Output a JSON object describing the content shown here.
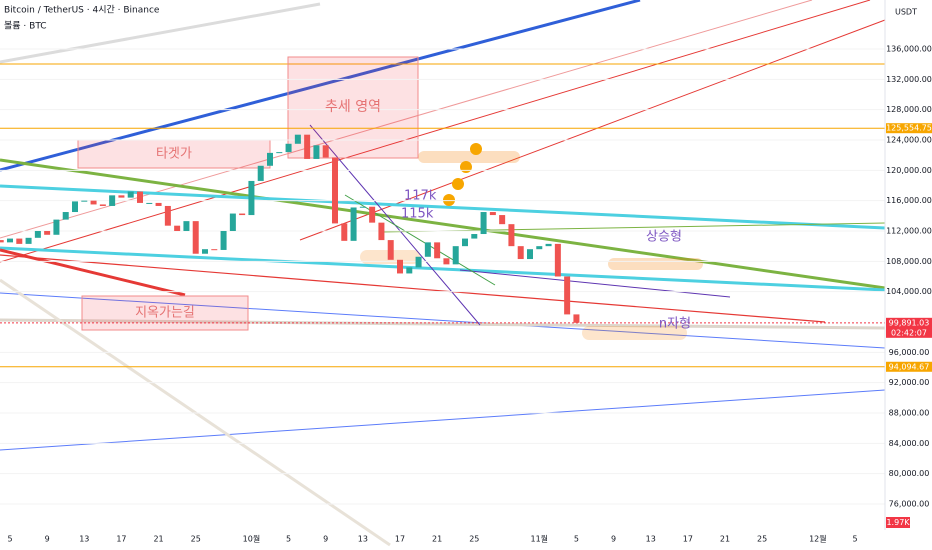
{
  "header": {
    "title": "Bitcoin / TetherUS · 4시간 · Binance",
    "subtitle": "볼륨 · BTC"
  },
  "annotations": [
    "추세 영역",
    "타겟가",
    "지옥가는길",
    "117k",
    "115k",
    "상승형",
    "n자형"
  ],
  "chart_data": {
    "type": "candlestick",
    "currency": "USDT",
    "categories": [
      null,
      null,
      "5",
      null,
      null,
      null,
      "9",
      null,
      null,
      null,
      "13",
      null,
      null,
      null,
      "17",
      null,
      null,
      null,
      "21",
      null,
      null,
      null,
      "25",
      null,
      null,
      null,
      null,
      null,
      "10월",
      null,
      null,
      null,
      "5",
      null,
      null,
      null,
      "9",
      null,
      null,
      null,
      "13",
      null,
      null,
      null,
      "17",
      null,
      null,
      null,
      "21",
      null,
      null,
      null,
      "25",
      null,
      null,
      null,
      null,
      null,
      null,
      "11월",
      null,
      null,
      null,
      "5",
      null,
      null,
      null,
      "9",
      null,
      null,
      null,
      "13",
      null,
      null,
      null,
      "17",
      null,
      null,
      null,
      "21",
      null,
      null,
      null,
      "25",
      null,
      null,
      null,
      null,
      null,
      "12월",
      null,
      null,
      null,
      "5",
      null
    ],
    "values": [
      110800,
      110500,
      111000,
      110300,
      111100,
      112000,
      111500,
      113500,
      114500,
      115900,
      116000,
      115500,
      115300,
      116700,
      116400,
      117200,
      115700,
      115700,
      115300,
      112700,
      112000,
      113300,
      109000,
      109600,
      109500,
      112000,
      114300,
      114100,
      118600,
      120600,
      122300,
      122400,
      123500,
      124700,
      121500,
      123300,
      121700,
      113000,
      110700,
      115100,
      115200,
      113100,
      110800,
      108200,
      106400,
      107200,
      108600,
      110500,
      108400,
      107600,
      110000,
      111000,
      111600,
      114500,
      114100,
      112900,
      110000,
      108300,
      109600,
      110000,
      110300,
      106000,
      101000,
      99891,
      null,
      null,
      null,
      null,
      null,
      null,
      null,
      null,
      null,
      null,
      null,
      null,
      null,
      null,
      null,
      null,
      null,
      null,
      null,
      null,
      null,
      null,
      null,
      null,
      null,
      null,
      null,
      null,
      null,
      null,
      null
    ],
    "up_color": "#26a69a",
    "down_color": "#ef5350",
    "ylim": [
      72570,
      142460
    ],
    "yticks": [
      {
        "value": 76000,
        "label": "76,000.00"
      },
      {
        "value": 80000,
        "label": "80,000.00"
      },
      {
        "value": 84000,
        "label": "84,000.00"
      },
      {
        "value": 88000,
        "label": "88,000.00"
      },
      {
        "value": 92000,
        "label": "92,000.00"
      },
      {
        "value": 96000,
        "label": "96,000.00"
      },
      {
        "value": 104000,
        "label": "104,000.00"
      },
      {
        "value": 108000,
        "label": "108,000.00"
      },
      {
        "value": 112000,
        "label": "112,000.00"
      },
      {
        "value": 116000,
        "label": "116,000.00"
      },
      {
        "value": 120000,
        "label": "120,000.00"
      },
      {
        "value": 124000,
        "label": "124,000.00"
      },
      {
        "value": 128000,
        "label": "128,000.00"
      },
      {
        "value": 132000,
        "label": "132,000.00"
      },
      {
        "value": 136000,
        "label": "136,000.00"
      }
    ],
    "price_labels": [
      {
        "value": 125554.75,
        "label": "125,554.75",
        "color": "#f7a600"
      },
      {
        "value": 99891.03,
        "label": "99,891.03",
        "color": "#f23645"
      },
      {
        "value": 94094.67,
        "label": "94,094.67",
        "color": "#f7a600"
      }
    ],
    "countdown": "02:42:07",
    "volume_label": "1.97K"
  }
}
